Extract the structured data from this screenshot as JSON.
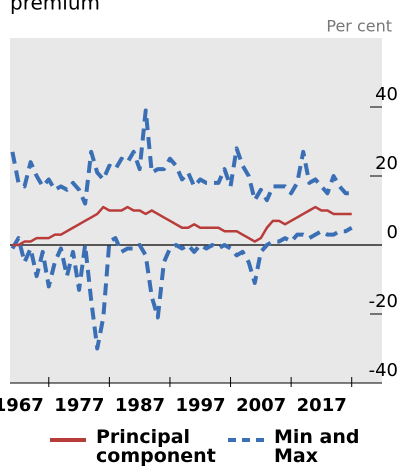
{
  "chart_data": {
    "type": "line",
    "title": "premium",
    "y_unit": "Per cent",
    "x": [
      1961,
      1962,
      1963,
      1964,
      1965,
      1966,
      1967,
      1968,
      1969,
      1970,
      1971,
      1972,
      1973,
      1974,
      1975,
      1976,
      1977,
      1978,
      1979,
      1980,
      1981,
      1982,
      1983,
      1984,
      1985,
      1986,
      1987,
      1988,
      1989,
      1990,
      1991,
      1992,
      1993,
      1994,
      1995,
      1996,
      1997,
      1998,
      1999,
      2000,
      2001,
      2002,
      2003,
      2004,
      2005,
      2006,
      2007,
      2008,
      2009,
      2010,
      2011,
      2012,
      2013,
      2014,
      2015,
      2016,
      2017
    ],
    "series": [
      {
        "name": "Principal component",
        "color": "#b83c3a",
        "dashed": false,
        "values": [
          0,
          0,
          1,
          1,
          2,
          2,
          2,
          3,
          3,
          4,
          5,
          6,
          7,
          8,
          9,
          11,
          10,
          10,
          10,
          11,
          10,
          10,
          9,
          10,
          9,
          8,
          7,
          6,
          5,
          5,
          6,
          5,
          5,
          5,
          5,
          4,
          4,
          4,
          3,
          2,
          1,
          2,
          5,
          7,
          7,
          6,
          7,
          8,
          9,
          10,
          11,
          10,
          10,
          9,
          9,
          9,
          9
        ]
      },
      {
        "name": "Min and Max",
        "color": "#3a6fb5",
        "dashed": true,
        "values": [
          27,
          18,
          17,
          24,
          20,
          17,
          19,
          16,
          17,
          16,
          18,
          16,
          12,
          27,
          21,
          19,
          23,
          22,
          25,
          24,
          27,
          22,
          39,
          21,
          22,
          22,
          25,
          23,
          19,
          21,
          17,
          19,
          18,
          18,
          18,
          22,
          17,
          28,
          23,
          20,
          13,
          16,
          13,
          17,
          17,
          17,
          15,
          18,
          27,
          18,
          19,
          17,
          15,
          20,
          17,
          15,
          15
        ]
      },
      {
        "name": "Min and Max",
        "color": "#3a6fb5",
        "dashed": true,
        "legend": false,
        "values": [
          -1,
          2,
          -5,
          -1,
          -9,
          -2,
          -12,
          -5,
          -1,
          -9,
          -2,
          -13,
          0,
          -16,
          -30,
          -21,
          1,
          2,
          -2,
          -1,
          -1,
          0,
          -3,
          -15,
          -21,
          -5,
          -1,
          0,
          -1,
          0,
          -2,
          0,
          -1,
          0,
          -1,
          0,
          -1,
          -3,
          -2,
          -5,
          -11,
          -2,
          0,
          1,
          1,
          2,
          1,
          3,
          3,
          2,
          3,
          4,
          3,
          3,
          4,
          4,
          5
        ]
      }
    ],
    "xlim": [
      1960.6,
      2022
    ],
    "xticks": [
      1967,
      1977,
      1987,
      1997,
      2007,
      2017
    ],
    "ylim": [
      -40,
      60
    ],
    "yticks": [
      -40,
      -20,
      0,
      20,
      40
    ]
  }
}
